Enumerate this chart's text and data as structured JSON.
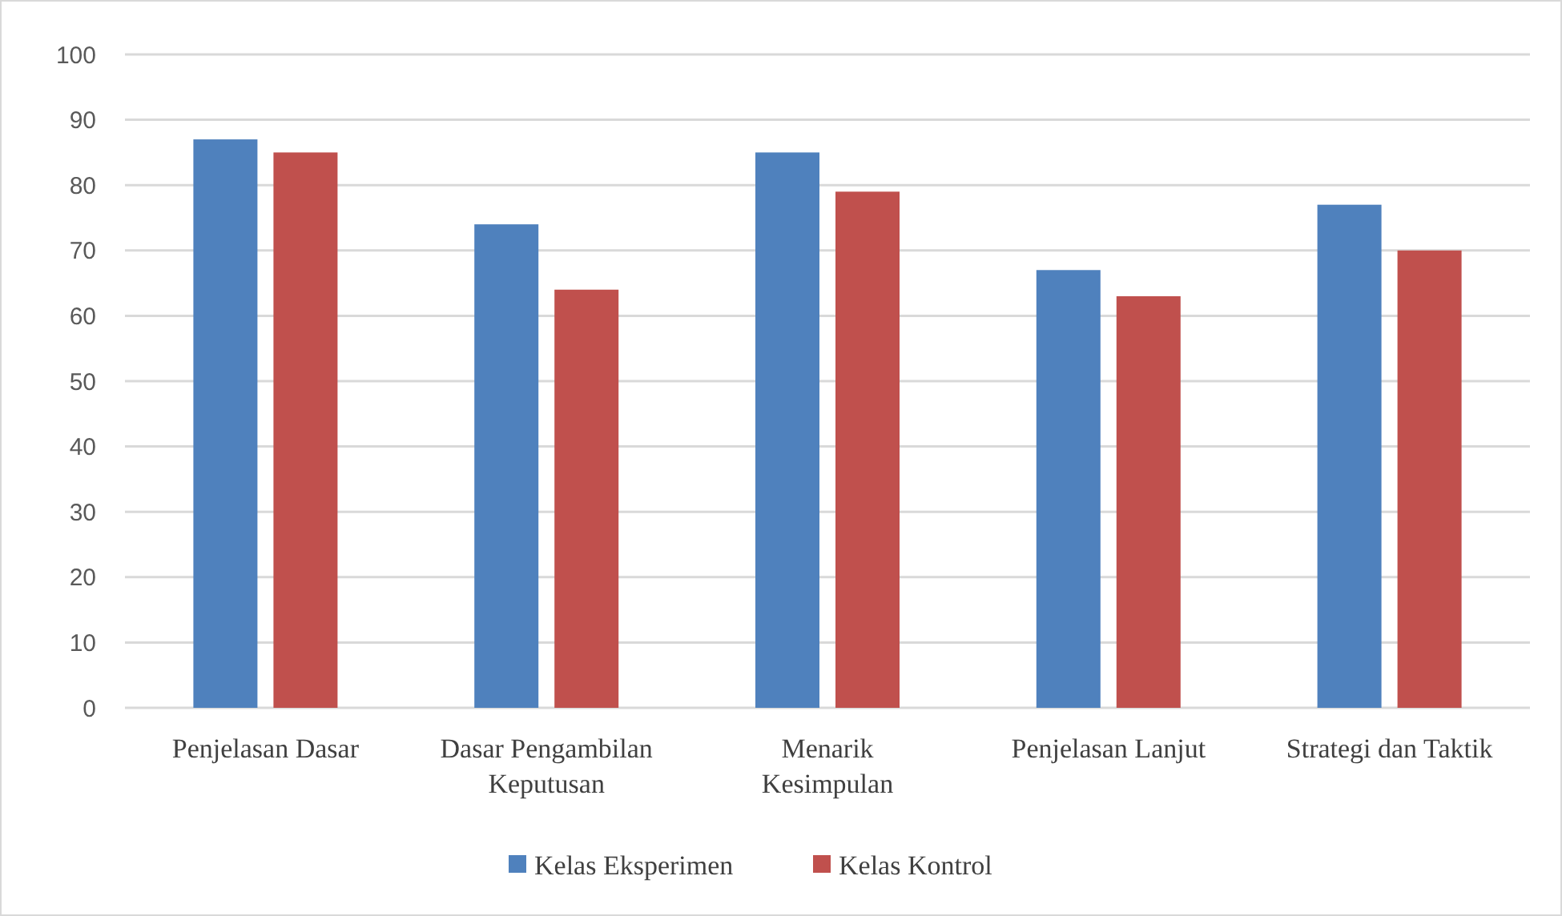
{
  "chart_data": {
    "type": "bar",
    "categories": [
      "Penjelasan Dasar",
      "Dasar Pengambilan\nKeputusan",
      "Menarik\nKesimpulan",
      "Penjelasan Lanjut",
      "Strategi dan Taktik"
    ],
    "series": [
      {
        "name": "Kelas Eksperimen",
        "color": "#4f81bd",
        "values": [
          87,
          74,
          85,
          67,
          77
        ]
      },
      {
        "name": "Kelas Kontrol",
        "color": "#c0504d",
        "values": [
          85,
          64,
          79,
          63,
          70
        ]
      }
    ],
    "ylim": [
      0,
      100
    ],
    "yticks": [
      0,
      10,
      20,
      30,
      40,
      50,
      60,
      70,
      80,
      90,
      100
    ],
    "grid": "y",
    "legend": "bottom"
  }
}
